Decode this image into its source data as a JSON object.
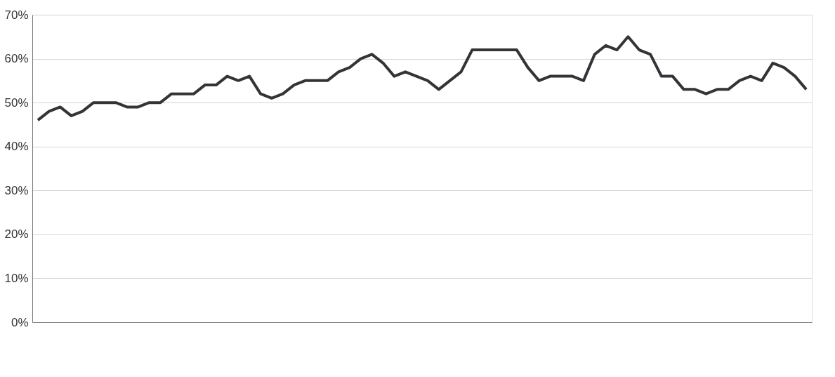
{
  "chart_data": {
    "type": "line",
    "categories": [
      null,
      null,
      null,
      null,
      null,
      null,
      null,
      null,
      null,
      null,
      null,
      null,
      null,
      null,
      null,
      null,
      null,
      null,
      null,
      null,
      null,
      null,
      null,
      null,
      null,
      null,
      null,
      null,
      null,
      null,
      null,
      null,
      null,
      null,
      null,
      null,
      null,
      null,
      null,
      null,
      null,
      null,
      null,
      null,
      null,
      null,
      null,
      null,
      null,
      null,
      null,
      null,
      null,
      null,
      null,
      null,
      null,
      null,
      null,
      null,
      null,
      null,
      null,
      null,
      null,
      null,
      null,
      null,
      null,
      null
    ],
    "series": [
      {
        "color": "#333338",
        "values": [
          46,
          48,
          49,
          47,
          48,
          50,
          50,
          50,
          49,
          49,
          50,
          50,
          52,
          52,
          52,
          54,
          54,
          56,
          55,
          56,
          52,
          51,
          52,
          54,
          55,
          55,
          55,
          57,
          58,
          60,
          61,
          59,
          56,
          57,
          56,
          55,
          53,
          55,
          57,
          62,
          62,
          62,
          62,
          62,
          58,
          55,
          56,
          56,
          56,
          55,
          61,
          63,
          62,
          65,
          62,
          61,
          56,
          56,
          53,
          53,
          52,
          53,
          53,
          55,
          56,
          55,
          59,
          58,
          56,
          53
        ]
      }
    ],
    "ylim": [
      0,
      70
    ],
    "yticks": [
      {
        "value": 0,
        "label": "0%"
      },
      {
        "value": 10,
        "label": "10%"
      },
      {
        "value": 20,
        "label": "20%"
      },
      {
        "value": 30,
        "label": "30%"
      },
      {
        "value": 40,
        "label": "40%"
      },
      {
        "value": 50,
        "label": "50%"
      },
      {
        "value": 60,
        "label": "60%"
      },
      {
        "value": 70,
        "label": "70%"
      }
    ],
    "grid": "y",
    "tick_labels": "y",
    "marker": "none",
    "line_style": "solid"
  }
}
